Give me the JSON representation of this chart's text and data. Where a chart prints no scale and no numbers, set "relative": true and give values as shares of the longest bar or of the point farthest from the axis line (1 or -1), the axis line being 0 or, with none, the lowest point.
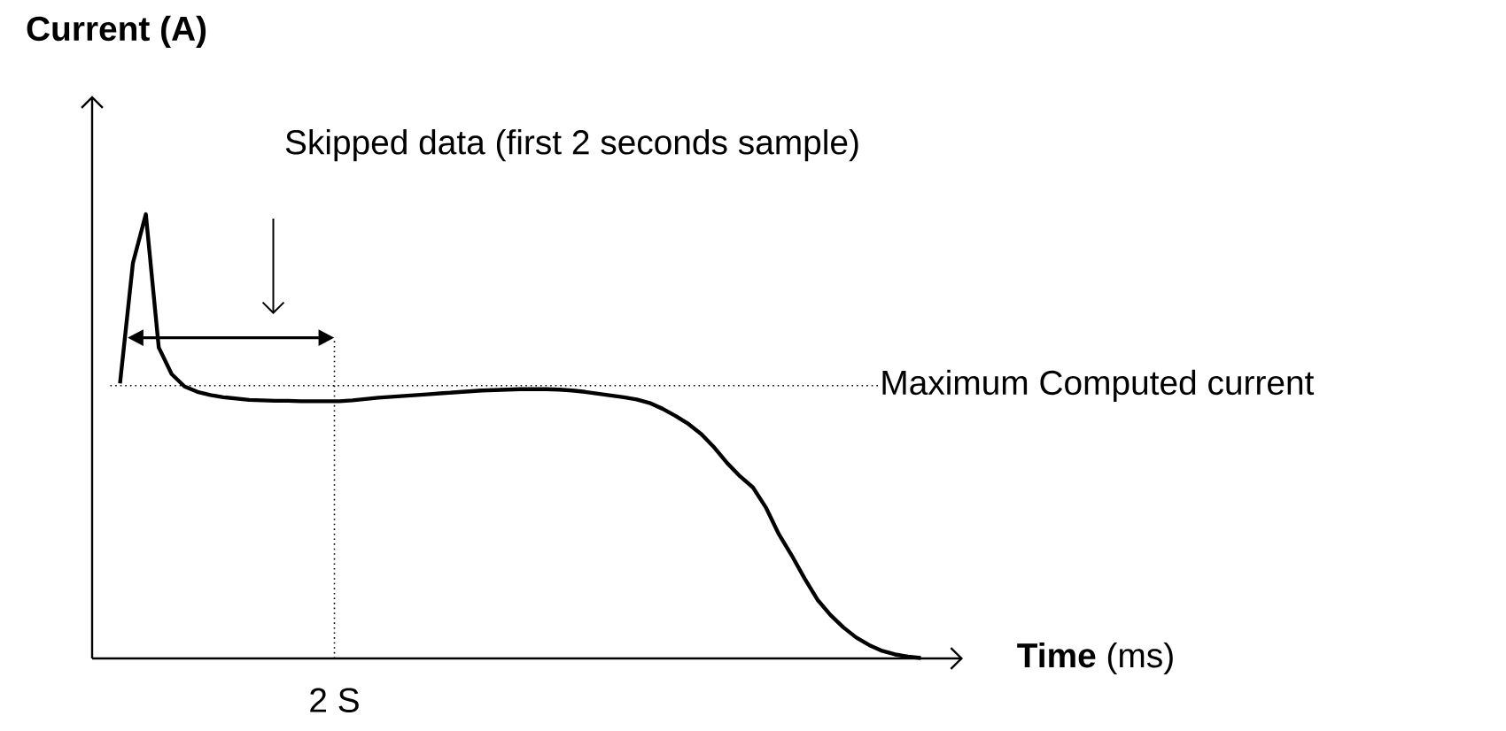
{
  "chart_data": {
    "type": "line",
    "relative": true,
    "xlabel": "**Time** (ms)",
    "ylabel": "Current (A)",
    "categories": [
      null,
      null,
      null,
      null,
      null,
      null,
      null,
      null,
      null,
      null,
      null,
      null,
      null,
      null,
      null,
      null,
      null,
      null,
      null,
      null,
      null,
      null,
      null,
      null,
      null,
      null,
      null,
      null,
      null,
      null,
      null,
      null,
      null,
      null,
      null,
      null,
      null,
      null,
      null,
      null,
      null,
      null,
      null,
      null,
      null,
      null,
      null,
      null,
      null,
      null,
      null,
      null,
      null,
      null,
      null,
      null,
      null,
      null,
      null,
      null,
      null,
      null,
      null
    ],
    "series": [
      {
        "color": "#000000",
        "values": [
          0.619,
          0.89,
          1.0,
          0.7,
          0.64,
          0.612,
          0.6,
          0.593,
          0.588,
          0.585,
          0.582,
          0.581,
          0.58,
          0.58,
          0.579,
          0.579,
          0.579,
          0.579,
          0.581,
          0.584,
          0.587,
          0.589,
          0.591,
          0.593,
          0.595,
          0.597,
          0.599,
          0.601,
          0.603,
          0.604,
          0.605,
          0.606,
          0.606,
          0.606,
          0.605,
          0.603,
          0.6,
          0.596,
          0.592,
          0.588,
          0.583,
          0.575,
          0.562,
          0.546,
          0.528,
          0.505,
          0.475,
          0.44,
          0.41,
          0.385,
          0.34,
          0.28,
          0.232,
          0.18,
          0.132,
          0.098,
          0.07,
          0.047,
          0.03,
          0.017,
          0.009,
          0.004,
          0.001
        ]
      }
    ],
    "ref_lines": [
      {
        "axis": "y",
        "value": 0.614,
        "label": "Maximum Computed current",
        "line_style": "dotted",
        "color": "#000000"
      }
    ],
    "annotations": [
      "Skipped data (first 2 seconds sample)",
      "2 S"
    ],
    "marker": "none",
    "line_style": "solid"
  }
}
